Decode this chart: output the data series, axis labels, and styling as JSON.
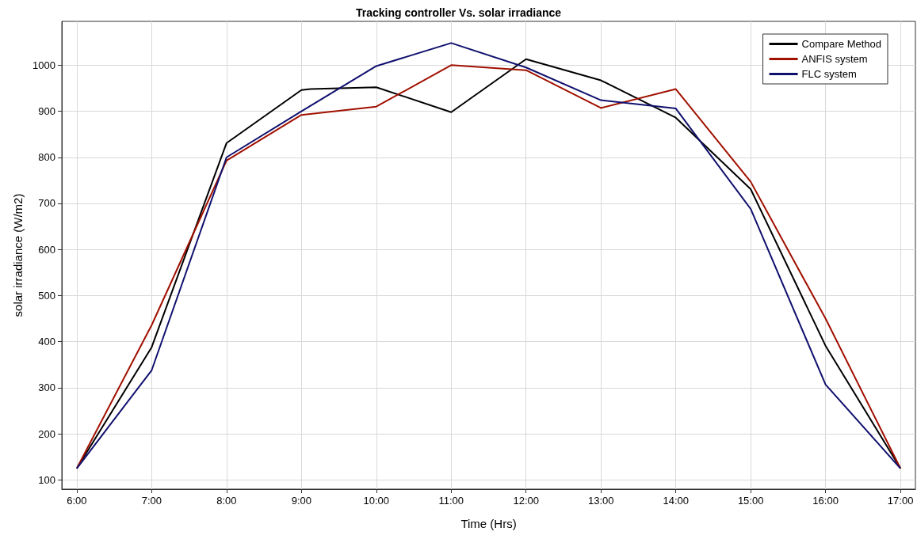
{
  "chart_data": {
    "type": "line",
    "title": "Tracking controller Vs. solar irradiance",
    "xlabel": "Time (Hrs)",
    "ylabel": "solar irradiance (W/m2)",
    "xlim": [
      5.8,
      17.2
    ],
    "xticks": [
      {
        "value": 6,
        "label": "6:00"
      },
      {
        "value": 7,
        "label": "7:00"
      },
      {
        "value": 8,
        "label": "8:00"
      },
      {
        "value": 9,
        "label": "9:00"
      },
      {
        "value": 10,
        "label": "10:00"
      },
      {
        "value": 11,
        "label": "11:00"
      },
      {
        "value": 12,
        "label": "12:00"
      },
      {
        "value": 13,
        "label": "13:00"
      },
      {
        "value": 14,
        "label": "14:00"
      },
      {
        "value": 15,
        "label": "15:00"
      },
      {
        "value": 16,
        "label": "16:00"
      },
      {
        "value": 17,
        "label": "17:00"
      }
    ],
    "ylim": [
      80,
      1095
    ],
    "yticks": [
      100,
      200,
      300,
      400,
      500,
      600,
      700,
      800,
      900,
      1000
    ],
    "series": [
      {
        "name": "Compare Method",
        "color": "#000000",
        "x": [
          6,
          7,
          8,
          9,
          9.12,
          10,
          11,
          12,
          13,
          14,
          15,
          16,
          17
        ],
        "values": [
          125,
          388,
          831,
          946,
          948,
          952,
          898,
          1013,
          967,
          886,
          731,
          391,
          125
        ]
      },
      {
        "name": "ANFIS system",
        "color": "#a01000",
        "x": [
          6,
          7,
          8,
          9,
          10,
          11,
          12,
          13,
          14,
          15,
          16,
          17
        ],
        "values": [
          125,
          436,
          793,
          892,
          910,
          1000,
          989,
          907,
          948,
          747,
          450,
          125
        ]
      },
      {
        "name": "FLC system",
        "color": "#10106e",
        "x": [
          6,
          7,
          8,
          9,
          10,
          11,
          12,
          13,
          14,
          15,
          16,
          17
        ],
        "values": [
          125,
          338,
          800,
          900,
          998,
          1048,
          995,
          924,
          906,
          688,
          307,
          125
        ]
      }
    ],
    "grid": true,
    "legend": "top right",
    "marker": "none",
    "line_style": "solid"
  }
}
